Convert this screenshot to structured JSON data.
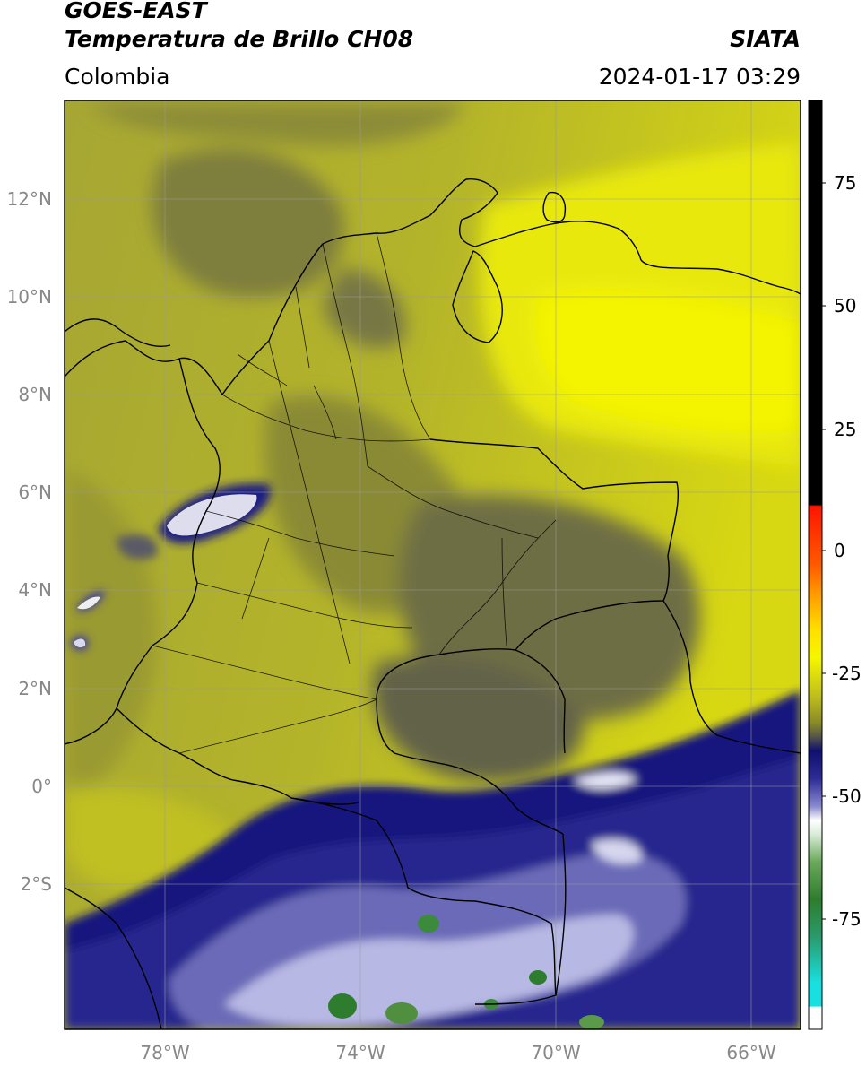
{
  "header": {
    "satellite": "GOES-EAST",
    "product": "Temperatura de Brillo CH08",
    "organization": "SIATA",
    "region": "Colombia",
    "datetime": "2024-01-17 03:29"
  },
  "map": {
    "lon_range": [
      -80,
      -64.9
    ],
    "lat_range": [
      -4.2,
      14.1
    ],
    "lon_ticks": [
      "78°W",
      "74°W",
      "70°W",
      "66°W"
    ],
    "lat_ticks": [
      "12°N",
      "10°N",
      "8°N",
      "6°N",
      "4°N",
      "2°N",
      "0°",
      "2°S"
    ],
    "gridlines": true
  },
  "colorbar": {
    "range": [
      -95,
      90
    ],
    "ticks": [
      "75",
      "50",
      "25",
      "0",
      "-25",
      "-50",
      "-75"
    ],
    "colors": {
      "black": "#000000",
      "red": "#ff1500",
      "orange": "#ff9800",
      "yellow": "#f6f600",
      "olive": "#8a8a28",
      "gray": "#55554a",
      "navy": "#12127a",
      "white": "#ffffff",
      "green": "#2e7d2e",
      "cyan": "#18e0e0"
    }
  }
}
